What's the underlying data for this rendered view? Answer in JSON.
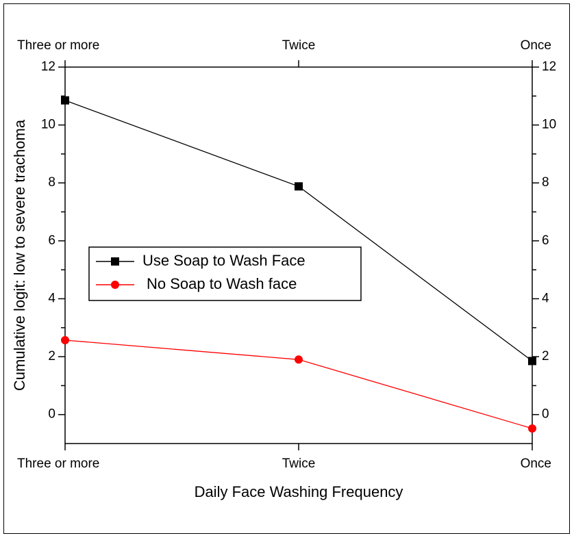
{
  "chart_data": {
    "type": "line",
    "xlabel": "Daily Face Washing Frequency",
    "ylabel": "Cumulative logit: low  to severe trachoma",
    "categories": [
      "Three or more",
      "Twice",
      "Once"
    ],
    "series": [
      {
        "name": "Use Soap to Wash Face",
        "color": "#000000",
        "marker": "square",
        "values": [
          10.85,
          7.88,
          1.85
        ]
      },
      {
        "name": "No Soap to Wash face",
        "color": "#ff0000",
        "marker": "circle",
        "values": [
          2.57,
          1.9,
          -0.48
        ]
      }
    ],
    "ylim": [
      -1,
      12
    ],
    "yticks": [
      0,
      2,
      4,
      6,
      8,
      10,
      12
    ],
    "legend": "left"
  }
}
